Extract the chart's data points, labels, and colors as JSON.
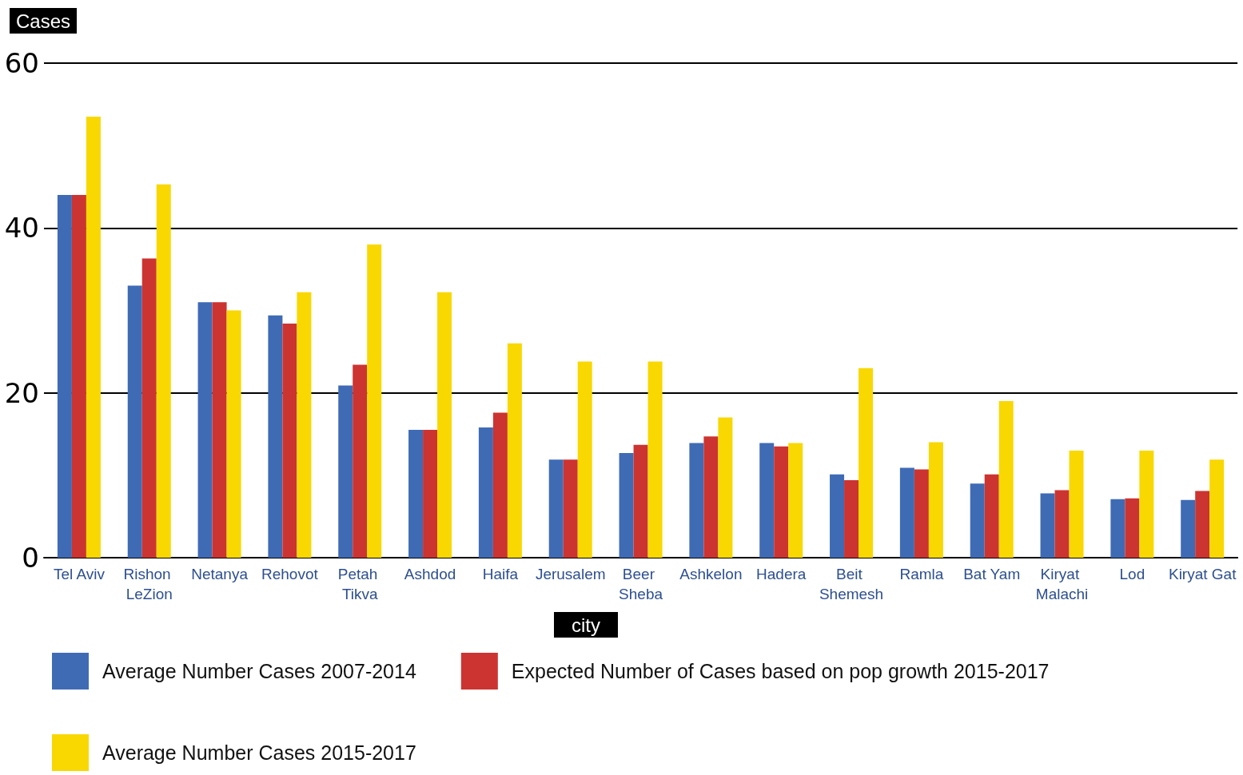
{
  "chart_data": {
    "type": "bar",
    "xlabel": "city",
    "ylabel": "Cases",
    "categories": [
      "Tel Aviv",
      "Rishon LeZion",
      "Netanya",
      "Rehovot",
      "Petah Tikva",
      "Ashdod",
      "Haifa",
      "Jerusalem",
      "Beer Sheba",
      "Ashkelon",
      "Hadera",
      "Beit Shemesh",
      "Ramla",
      "Bat Yam",
      "Kiryat Malachi",
      "Lod",
      "Kiryat Gat"
    ],
    "series": [
      {
        "name": "Average Number Cases 2007-2014",
        "color": "#3f6bb5",
        "values": [
          44.0,
          33.0,
          31.0,
          29.4,
          20.9,
          15.5,
          15.8,
          11.9,
          12.7,
          13.9,
          13.9,
          10.1,
          10.9,
          9.0,
          7.8,
          7.1,
          7.0
        ]
      },
      {
        "name": "Expected Number of Cases based on pop growth 2015-2017",
        "color": "#cc3431",
        "values": [
          44.0,
          36.3,
          31.0,
          28.4,
          23.4,
          15.5,
          17.6,
          11.9,
          13.7,
          14.7,
          13.5,
          9.4,
          10.7,
          10.1,
          8.2,
          7.2,
          8.1
        ]
      },
      {
        "name": "Average Number Cases 2015-2017",
        "color": "#f8d800",
        "values": [
          53.5,
          45.3,
          30.0,
          32.2,
          38.0,
          32.2,
          26.0,
          23.8,
          23.8,
          17.0,
          13.9,
          23.0,
          14.0,
          19.0,
          13.0,
          13.0,
          11.9
        ]
      }
    ],
    "ylim": [
      0,
      60
    ],
    "yticks": [
      0,
      20,
      40,
      60
    ],
    "grid": "y",
    "legend": "bottom"
  }
}
